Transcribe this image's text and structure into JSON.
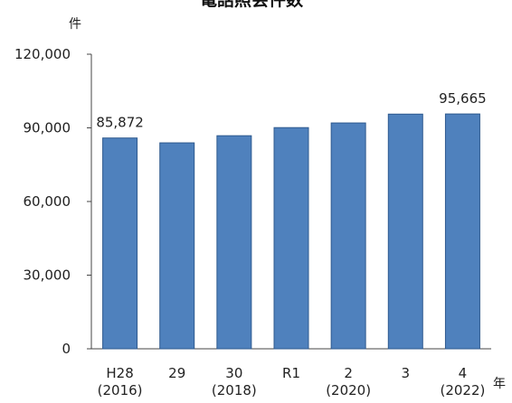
{
  "chart_data": {
    "type": "bar",
    "title": "電話照会件数",
    "y_unit": "件",
    "x_unit": "年",
    "ylim": [
      0,
      120000
    ],
    "y_ticks": [
      "0",
      "30,000",
      "60,000",
      "90,000",
      "120,000"
    ],
    "categories": [
      {
        "line1": "H28",
        "line2": "(2016)"
      },
      {
        "line1": "29",
        "line2": ""
      },
      {
        "line1": "30",
        "line2": "(2018)"
      },
      {
        "line1": "R1",
        "line2": ""
      },
      {
        "line1": "2",
        "line2": "(2020)"
      },
      {
        "line1": "3",
        "line2": ""
      },
      {
        "line1": "4",
        "line2": "(2022)"
      }
    ],
    "values": [
      85872,
      83900,
      86800,
      90100,
      92000,
      95600,
      95665
    ],
    "data_labels": [
      "85,872",
      "",
      "",
      "",
      "",
      "",
      "95,665"
    ],
    "colors": {
      "bar": "#4f81bd",
      "bar_edge": "#2f5a8f"
    },
    "grid": false,
    "legend": "none"
  }
}
